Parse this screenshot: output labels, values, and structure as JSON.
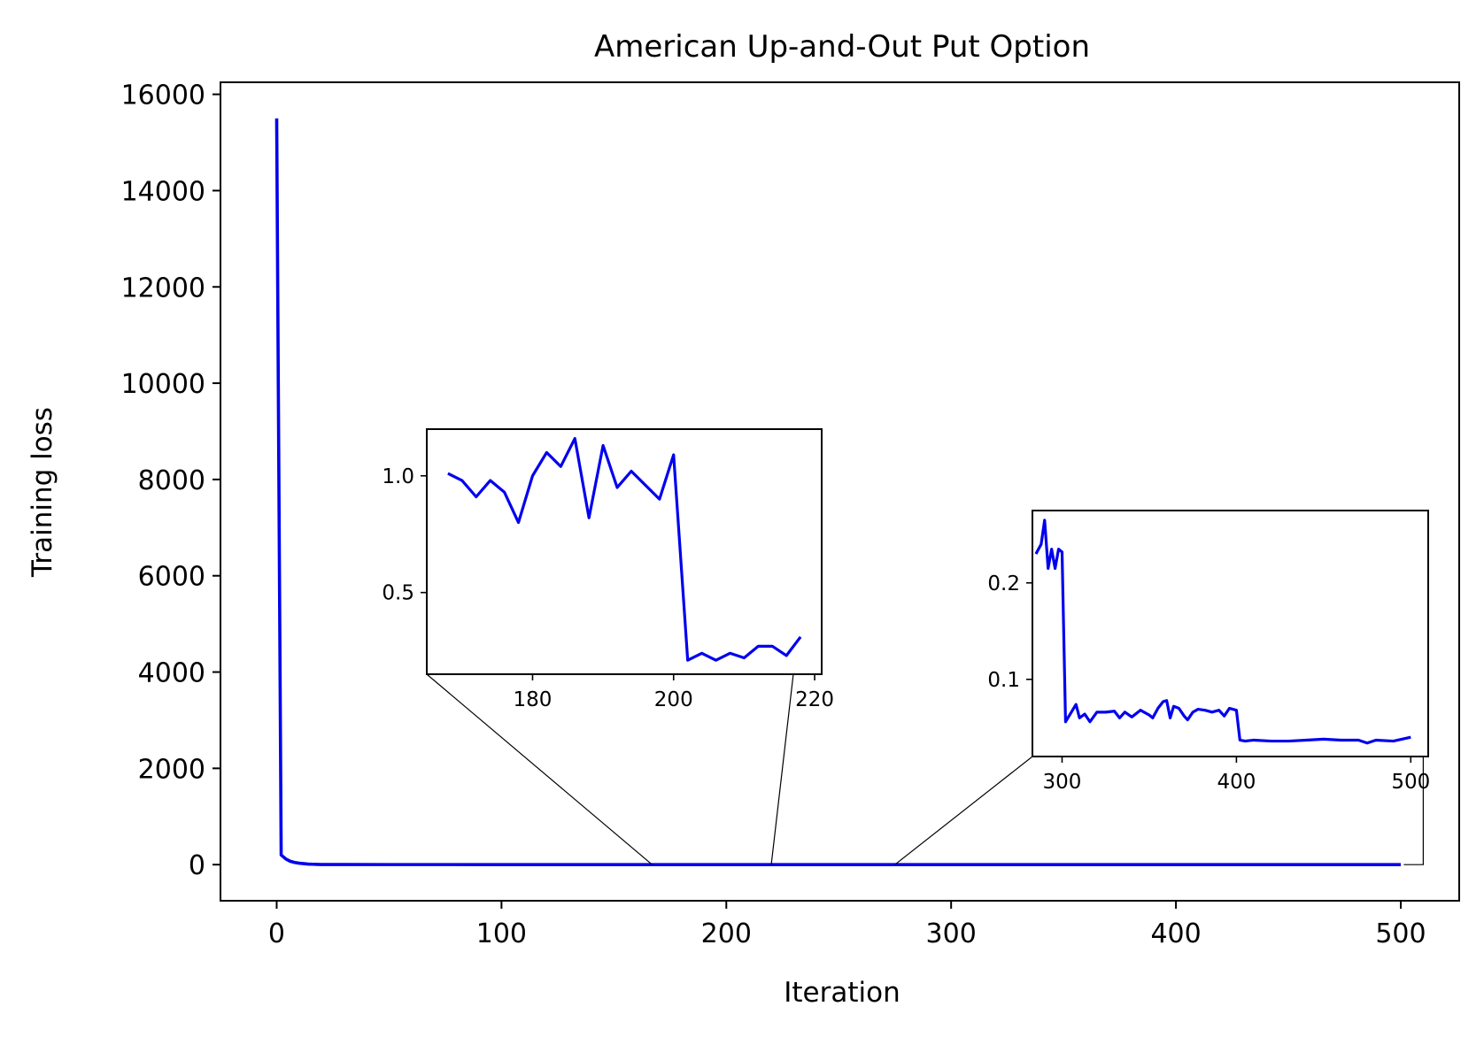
{
  "chart_data": {
    "type": "line",
    "title": "American Up-and-Out Put Option",
    "xlabel": "Iteration",
    "ylabel": "Training loss",
    "xlim": [
      -25,
      526
    ],
    "ylim": [
      -750,
      16250
    ],
    "grid": false,
    "x_ticks": [
      "0",
      "100",
      "200",
      "300",
      "400",
      "500"
    ],
    "y_ticks": [
      "0",
      "2000",
      "4000",
      "6000",
      "8000",
      "10000",
      "12000",
      "14000",
      "16000"
    ],
    "series": [
      {
        "color": "#0000ee",
        "x": [
          0,
          2,
          4,
          6,
          8,
          10,
          12,
          14,
          16,
          18,
          20,
          30,
          50,
          100,
          150,
          200,
          250,
          300,
          350,
          400,
          450,
          500
        ],
        "y": [
          15500,
          200,
          120,
          70,
          45,
          30,
          20,
          12,
          8,
          5,
          3,
          1.5,
          1.2,
          1.0,
          1.0,
          0.3,
          0.3,
          0.2,
          0.06,
          0.07,
          0.04,
          0.04
        ]
      }
    ],
    "insets": [
      {
        "xlim": [
          165,
          221
        ],
        "ylim": [
          0.15,
          1.2
        ],
        "x_ticks": [
          "180",
          "200",
          "220"
        ],
        "y_ticks": [
          "0.5",
          "1.0"
        ],
        "zoom_region": {
          "x": [
            167,
            220
          ]
        },
        "series": {
          "color": "#0000ee",
          "x": [
            168,
            170,
            172,
            174,
            176,
            178,
            180,
            182,
            184,
            186,
            188,
            190,
            192,
            194,
            196,
            198,
            200,
            202,
            204,
            206,
            208,
            210,
            212,
            214,
            216,
            218
          ],
          "y": [
            1.01,
            0.98,
            0.91,
            0.98,
            0.93,
            0.8,
            1.0,
            1.1,
            1.04,
            1.16,
            0.82,
            1.13,
            0.95,
            1.02,
            0.96,
            0.9,
            1.09,
            0.21,
            0.24,
            0.21,
            0.24,
            0.22,
            0.27,
            0.27,
            0.23,
            0.31
          ]
        }
      },
      {
        "xlim": [
          283,
          510
        ],
        "ylim": [
          0.02,
          0.275
        ],
        "x_ticks": [
          "300",
          "400",
          "500"
        ],
        "y_ticks": [
          "0.1",
          "0.2"
        ],
        "zoom_region": {
          "x": [
            275,
            510
          ]
        },
        "series": {
          "color": "#0000ee",
          "x": [
            285,
            288,
            290,
            292,
            294,
            296,
            298,
            300,
            302,
            305,
            308,
            310,
            313,
            316,
            320,
            325,
            330,
            333,
            336,
            340,
            345,
            350,
            352,
            355,
            358,
            360,
            362,
            364,
            367,
            370,
            372,
            375,
            378,
            382,
            386,
            390,
            393,
            396,
            400,
            402,
            405,
            410,
            420,
            430,
            440,
            450,
            460,
            470,
            475,
            480,
            490,
            500
          ],
          "y": [
            0.23,
            0.24,
            0.265,
            0.215,
            0.235,
            0.215,
            0.235,
            0.232,
            0.056,
            0.065,
            0.074,
            0.06,
            0.064,
            0.056,
            0.066,
            0.066,
            0.067,
            0.06,
            0.066,
            0.061,
            0.068,
            0.063,
            0.06,
            0.07,
            0.077,
            0.078,
            0.06,
            0.072,
            0.07,
            0.062,
            0.058,
            0.066,
            0.069,
            0.068,
            0.066,
            0.068,
            0.062,
            0.07,
            0.068,
            0.037,
            0.036,
            0.037,
            0.036,
            0.036,
            0.037,
            0.038,
            0.037,
            0.037,
            0.034,
            0.037,
            0.036,
            0.04
          ]
        }
      }
    ]
  }
}
